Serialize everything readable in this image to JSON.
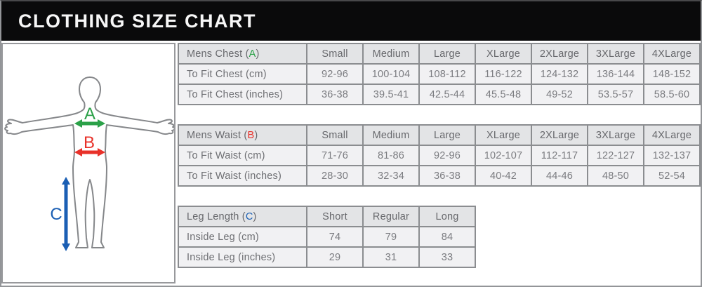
{
  "header": {
    "title": "CLOTHING SIZE CHART"
  },
  "figure": {
    "chest_label": "A",
    "waist_label": "B",
    "leg_label": "C",
    "arrow_colors": {
      "chest": "#2BA148",
      "waist": "#E83129",
      "leg": "#1B5FB4"
    },
    "outline_color": "#85878a"
  },
  "chart_data": [
    {
      "type": "table",
      "id": "mens-chest",
      "title_prefix": "Mens Chest (",
      "measure_letter": "A",
      "title_suffix": ")",
      "measure_color": "#2BA148",
      "columns": [
        "Small",
        "Medium",
        "Large",
        "XLarge",
        "2XLarge",
        "3XLarge",
        "4XLarge"
      ],
      "rows": [
        {
          "label": "To Fit Chest (cm)",
          "values": [
            "92-96",
            "100-104",
            "108-112",
            "116-122",
            "124-132",
            "136-144",
            "148-152"
          ]
        },
        {
          "label": "To Fit Chest (inches)",
          "values": [
            "36-38",
            "39.5-41",
            "42.5-44",
            "45.5-48",
            "49-52",
            "53.5-57",
            "58.5-60"
          ]
        }
      ]
    },
    {
      "type": "table",
      "id": "mens-waist",
      "title_prefix": "Mens Waist (",
      "measure_letter": "B",
      "title_suffix": ")",
      "measure_color": "#E83129",
      "columns": [
        "Small",
        "Medium",
        "Large",
        "XLarge",
        "2XLarge",
        "3XLarge",
        "4XLarge"
      ],
      "rows": [
        {
          "label": "To Fit Waist (cm)",
          "values": [
            "71-76",
            "81-86",
            "92-96",
            "102-107",
            "112-117",
            "122-127",
            "132-137"
          ]
        },
        {
          "label": "To Fit Waist (inches)",
          "values": [
            "28-30",
            "32-34",
            "36-38",
            "40-42",
            "44-46",
            "48-50",
            "52-54"
          ]
        }
      ]
    },
    {
      "type": "table",
      "id": "leg-length",
      "title_prefix": "Leg Length (",
      "measure_letter": "C",
      "title_suffix": ")",
      "measure_color": "#1B5FB4",
      "columns": [
        "Short",
        "Regular",
        "Long"
      ],
      "rows": [
        {
          "label": "Inside Leg (cm)",
          "values": [
            "74",
            "79",
            "84"
          ]
        },
        {
          "label": "Inside Leg (inches)",
          "values": [
            "29",
            "31",
            "33"
          ]
        }
      ]
    }
  ]
}
